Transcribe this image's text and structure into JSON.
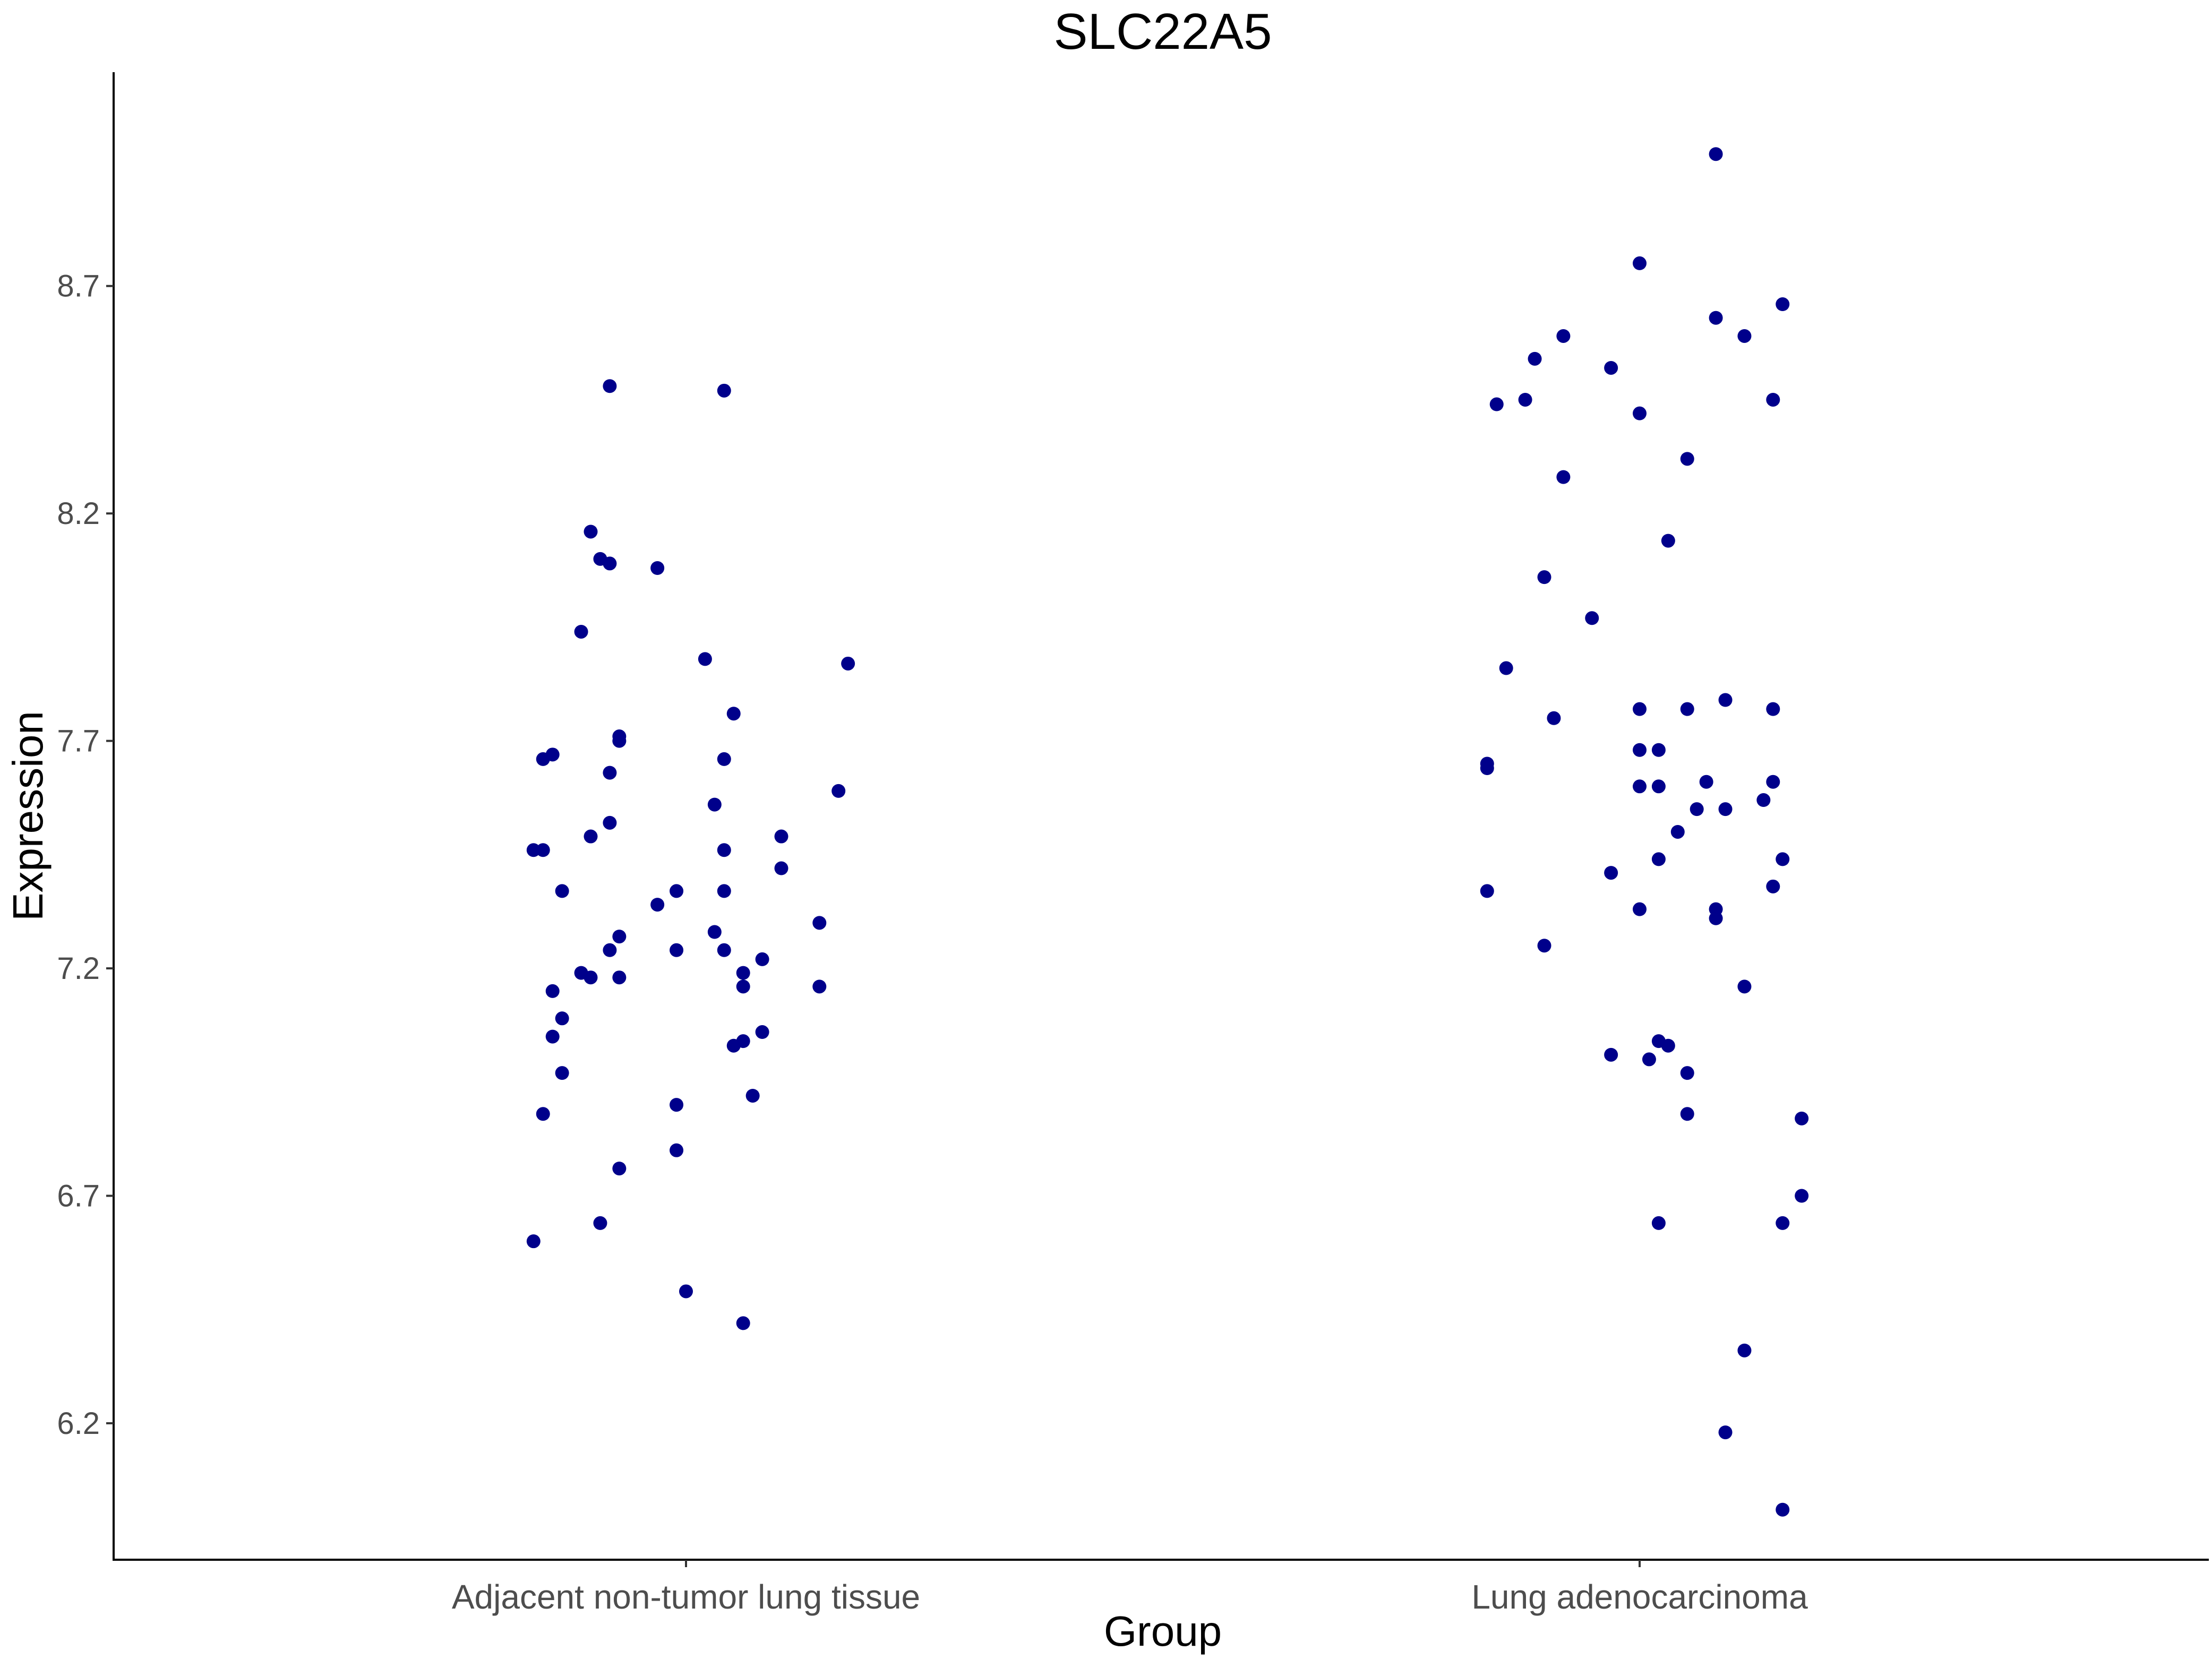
{
  "chart_data": {
    "type": "scatter",
    "title": "SLC22A5",
    "xlabel": "Group",
    "ylabel": "Expression",
    "categories": [
      "Adjacent non-tumor lung tissue",
      "Lung adenocarcinoma"
    ],
    "y_ticks": [
      "6.2",
      "6.7",
      "7.2",
      "7.7",
      "8.2",
      "8.7"
    ],
    "ylim": [
      5.9,
      9.17
    ],
    "grid": false,
    "legend": "none",
    "point_color": "#00008B",
    "series": [
      {
        "category": "Adjacent non-tumor lung tissue",
        "points": [
          {
            "jitter": -0.08,
            "y": 8.48
          },
          {
            "jitter": 0.04,
            "y": 8.47
          },
          {
            "jitter": -0.1,
            "y": 8.16
          },
          {
            "jitter": -0.09,
            "y": 8.1
          },
          {
            "jitter": -0.08,
            "y": 8.09
          },
          {
            "jitter": -0.03,
            "y": 8.08
          },
          {
            "jitter": -0.11,
            "y": 7.94
          },
          {
            "jitter": 0.02,
            "y": 7.88
          },
          {
            "jitter": 0.17,
            "y": 7.87
          },
          {
            "jitter": 0.05,
            "y": 7.76
          },
          {
            "jitter": -0.07,
            "y": 7.7
          },
          {
            "jitter": -0.07,
            "y": 7.71
          },
          {
            "jitter": -0.15,
            "y": 7.66
          },
          {
            "jitter": -0.14,
            "y": 7.67
          },
          {
            "jitter": 0.04,
            "y": 7.66
          },
          {
            "jitter": -0.08,
            "y": 7.63
          },
          {
            "jitter": 0.16,
            "y": 7.59
          },
          {
            "jitter": 0.03,
            "y": 7.56
          },
          {
            "jitter": -0.08,
            "y": 7.52
          },
          {
            "jitter": 0.1,
            "y": 7.49
          },
          {
            "jitter": -0.1,
            "y": 7.49
          },
          {
            "jitter": -0.16,
            "y": 7.46
          },
          {
            "jitter": -0.15,
            "y": 7.46
          },
          {
            "jitter": 0.04,
            "y": 7.46
          },
          {
            "jitter": 0.1,
            "y": 7.42
          },
          {
            "jitter": -0.13,
            "y": 7.37
          },
          {
            "jitter": -0.01,
            "y": 7.37
          },
          {
            "jitter": 0.04,
            "y": 7.37
          },
          {
            "jitter": -0.03,
            "y": 7.34
          },
          {
            "jitter": 0.14,
            "y": 7.3
          },
          {
            "jitter": 0.03,
            "y": 7.28
          },
          {
            "jitter": -0.07,
            "y": 7.27
          },
          {
            "jitter": -0.01,
            "y": 7.24
          },
          {
            "jitter": -0.08,
            "y": 7.24
          },
          {
            "jitter": 0.04,
            "y": 7.24
          },
          {
            "jitter": 0.08,
            "y": 7.22
          },
          {
            "jitter": -0.11,
            "y": 7.19
          },
          {
            "jitter": -0.1,
            "y": 7.18
          },
          {
            "jitter": -0.07,
            "y": 7.18
          },
          {
            "jitter": 0.06,
            "y": 7.19
          },
          {
            "jitter": 0.06,
            "y": 7.16
          },
          {
            "jitter": -0.14,
            "y": 7.15
          },
          {
            "jitter": 0.14,
            "y": 7.16
          },
          {
            "jitter": -0.13,
            "y": 7.09
          },
          {
            "jitter": -0.14,
            "y": 7.05
          },
          {
            "jitter": 0.08,
            "y": 7.06
          },
          {
            "jitter": 0.06,
            "y": 7.04
          },
          {
            "jitter": 0.05,
            "y": 7.03
          },
          {
            "jitter": -0.13,
            "y": 6.97
          },
          {
            "jitter": 0.07,
            "y": 6.92
          },
          {
            "jitter": -0.01,
            "y": 6.9
          },
          {
            "jitter": -0.15,
            "y": 6.88
          },
          {
            "jitter": -0.01,
            "y": 6.8
          },
          {
            "jitter": -0.07,
            "y": 6.76
          },
          {
            "jitter": -0.09,
            "y": 6.64
          },
          {
            "jitter": -0.16,
            "y": 6.6
          },
          {
            "jitter": 0.0,
            "y": 6.49
          },
          {
            "jitter": 0.06,
            "y": 6.42
          }
        ]
      },
      {
        "category": "Lung adenocarcinoma",
        "points": [
          {
            "jitter": 0.08,
            "y": 8.99
          },
          {
            "jitter": 0.0,
            "y": 8.75
          },
          {
            "jitter": 0.15,
            "y": 8.66
          },
          {
            "jitter": 0.08,
            "y": 8.63
          },
          {
            "jitter": 0.11,
            "y": 8.59
          },
          {
            "jitter": -0.08,
            "y": 8.59
          },
          {
            "jitter": -0.11,
            "y": 8.54
          },
          {
            "jitter": -0.03,
            "y": 8.52
          },
          {
            "jitter": -0.15,
            "y": 8.44
          },
          {
            "jitter": -0.12,
            "y": 8.45
          },
          {
            "jitter": 0.14,
            "y": 8.45
          },
          {
            "jitter": 0.0,
            "y": 8.42
          },
          {
            "jitter": 0.05,
            "y": 8.32
          },
          {
            "jitter": -0.08,
            "y": 8.28
          },
          {
            "jitter": 0.03,
            "y": 8.14
          },
          {
            "jitter": -0.1,
            "y": 8.06
          },
          {
            "jitter": -0.05,
            "y": 7.97
          },
          {
            "jitter": -0.14,
            "y": 7.86
          },
          {
            "jitter": 0.09,
            "y": 7.79
          },
          {
            "jitter": 0.14,
            "y": 7.77
          },
          {
            "jitter": 0.05,
            "y": 7.77
          },
          {
            "jitter": 0.0,
            "y": 7.77
          },
          {
            "jitter": -0.09,
            "y": 7.75
          },
          {
            "jitter": 0.02,
            "y": 7.68
          },
          {
            "jitter": 0.0,
            "y": 7.68
          },
          {
            "jitter": -0.16,
            "y": 7.65
          },
          {
            "jitter": -0.16,
            "y": 7.64
          },
          {
            "jitter": 0.07,
            "y": 7.61
          },
          {
            "jitter": 0.14,
            "y": 7.61
          },
          {
            "jitter": 0.0,
            "y": 7.6
          },
          {
            "jitter": 0.02,
            "y": 7.6
          },
          {
            "jitter": 0.13,
            "y": 7.57
          },
          {
            "jitter": 0.06,
            "y": 7.55
          },
          {
            "jitter": 0.09,
            "y": 7.55
          },
          {
            "jitter": 0.04,
            "y": 7.5
          },
          {
            "jitter": 0.02,
            "y": 7.44
          },
          {
            "jitter": 0.15,
            "y": 7.44
          },
          {
            "jitter": -0.03,
            "y": 7.41
          },
          {
            "jitter": 0.14,
            "y": 7.38
          },
          {
            "jitter": -0.16,
            "y": 7.37
          },
          {
            "jitter": 0.0,
            "y": 7.33
          },
          {
            "jitter": 0.08,
            "y": 7.33
          },
          {
            "jitter": 0.08,
            "y": 7.31
          },
          {
            "jitter": -0.1,
            "y": 7.25
          },
          {
            "jitter": 0.11,
            "y": 7.16
          },
          {
            "jitter": 0.02,
            "y": 7.04
          },
          {
            "jitter": 0.03,
            "y": 7.03
          },
          {
            "jitter": -0.03,
            "y": 7.01
          },
          {
            "jitter": 0.01,
            "y": 7.0
          },
          {
            "jitter": 0.05,
            "y": 6.97
          },
          {
            "jitter": 0.05,
            "y": 6.88
          },
          {
            "jitter": 0.17,
            "y": 6.87
          },
          {
            "jitter": 0.17,
            "y": 6.7
          },
          {
            "jitter": 0.15,
            "y": 6.64
          },
          {
            "jitter": 0.02,
            "y": 6.64
          },
          {
            "jitter": 0.11,
            "y": 6.36
          },
          {
            "jitter": 0.09,
            "y": 6.18
          },
          {
            "jitter": 0.15,
            "y": 6.01
          }
        ]
      }
    ]
  }
}
